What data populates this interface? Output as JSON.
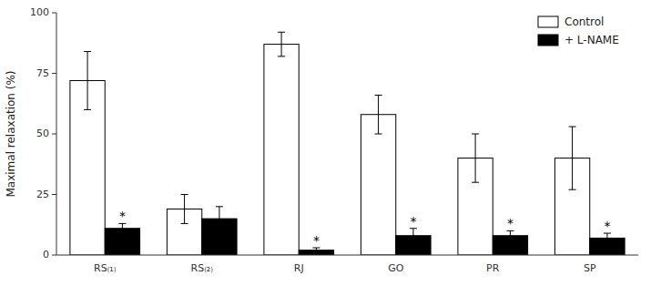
{
  "chart_data": {
    "type": "bar",
    "categories": [
      "RS₍₁₎",
      "RS₍₂₎",
      "RJ",
      "GO",
      "PR",
      "SP"
    ],
    "series": [
      {
        "name": "Control",
        "color": "#ffffff",
        "values": [
          72,
          19,
          87,
          58,
          40,
          40
        ],
        "errors": [
          12,
          6,
          5,
          8,
          10,
          13
        ]
      },
      {
        "name": "+ L-NAME",
        "color": "#000000",
        "values": [
          11,
          15,
          2,
          8,
          8,
          7
        ],
        "errors": [
          2,
          5,
          1,
          3,
          2,
          2
        ]
      }
    ],
    "annotations": [
      {
        "text": "*",
        "series": "+ L-NAME",
        "category": "RS₍₁₎"
      },
      {
        "text": "*",
        "series": "+ L-NAME",
        "category": "RJ"
      },
      {
        "text": "*",
        "series": "+ L-NAME",
        "category": "GO"
      },
      {
        "text": "*",
        "series": "+ L-NAME",
        "category": "PR"
      },
      {
        "text": "*",
        "series": "+ L-NAME",
        "category": "SP"
      }
    ],
    "y_label": "Maximal relaxation (%)",
    "ylim": [
      0,
      100
    ],
    "yticks": [
      0,
      25,
      50,
      75,
      100
    ],
    "grid": false,
    "legend": "upper-right"
  }
}
